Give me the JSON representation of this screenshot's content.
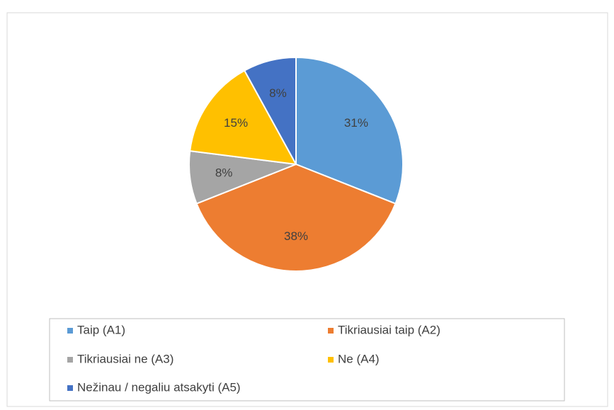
{
  "chart_data": {
    "type": "pie",
    "categories": [
      "Taip (A1)",
      "Tikriausiai taip (A2)",
      "Tikriausiai ne (A3)",
      "Ne (A4)",
      "Nežinau / negaliu atsakyti (A5)"
    ],
    "values": [
      31,
      38,
      8,
      15,
      8
    ],
    "value_labels": [
      "31%",
      "38%",
      "8%",
      "15%",
      "8%"
    ],
    "colors": [
      "#5b9bd5",
      "#ed7d31",
      "#a5a5a5",
      "#ffc000",
      "#4472c4"
    ],
    "legend": "bottom"
  }
}
